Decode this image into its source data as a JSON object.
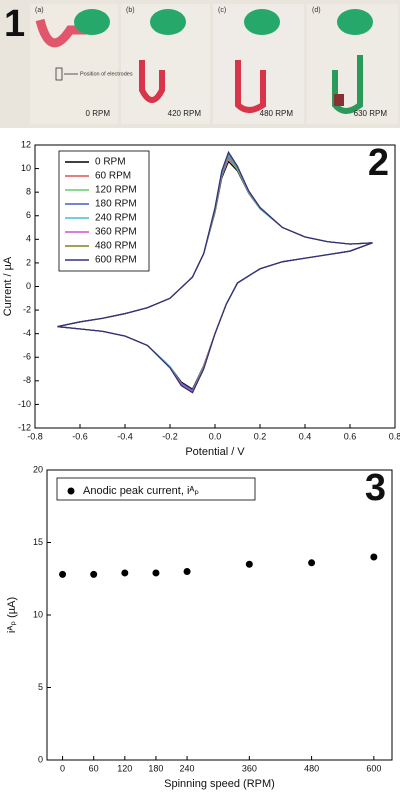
{
  "photo_panel": {
    "label": "1",
    "captions": [
      "(a)",
      "(b)",
      "(c)",
      "(d)"
    ],
    "speeds": [
      "0 RPM",
      "420 RPM",
      "480 RPM",
      "630 RPM"
    ],
    "annotation": "Position of electrodes"
  },
  "chart_data": [
    {
      "type": "line",
      "label": "2",
      "xlabel": "Potential / V",
      "ylabel": "Current / µA",
      "xlim": [
        -0.8,
        0.8
      ],
      "xticks": [
        -0.8,
        -0.6,
        -0.4,
        -0.2,
        {
          "value": 0,
          "label": "0.0"
        },
        0.2,
        0.4,
        0.6,
        0.8
      ],
      "ylim": [
        -12,
        12
      ],
      "yticks": [
        -12,
        -10,
        -8,
        -6,
        -4,
        -2,
        0,
        2,
        4,
        6,
        8,
        10,
        12
      ],
      "legend": "upper-left",
      "x": [
        -0.7,
        -0.6,
        -0.5,
        -0.4,
        -0.3,
        -0.2,
        -0.1,
        -0.05,
        0,
        0.03,
        0.06,
        0.1,
        0.15,
        0.2,
        0.3,
        0.4,
        0.5,
        0.6,
        0.7,
        0.6,
        0.5,
        0.4,
        0.3,
        0.2,
        0.1,
        0.05,
        0,
        -0.05,
        -0.1,
        -0.15,
        -0.2,
        -0.3,
        -0.4,
        -0.5,
        -0.6,
        -0.7
      ],
      "series": [
        {
          "name": "0 RPM",
          "color": "#000000",
          "values": [
            -3.4,
            -3.0,
            -2.7,
            -2.3,
            -1.8,
            -1.0,
            0.8,
            2.8,
            6.3,
            9.2,
            10.6,
            9.8,
            7.9,
            6.6,
            5.0,
            4.2,
            3.8,
            3.6,
            3.7,
            3.0,
            2.7,
            2.4,
            2.1,
            1.5,
            0.3,
            -1.5,
            -4.0,
            -6.7,
            -8.7,
            -8.1,
            -6.8,
            -5.0,
            -4.2,
            -3.8,
            -3.6,
            -3.4
          ]
        },
        {
          "name": "60 RPM",
          "color": "#e05050",
          "values": [
            -3.4,
            -3.0,
            -2.7,
            -2.3,
            -1.8,
            -1.0,
            0.8,
            2.8,
            6.4,
            9.3,
            10.8,
            9.9,
            7.9,
            6.6,
            5.0,
            4.2,
            3.8,
            3.6,
            3.7,
            3.0,
            2.7,
            2.4,
            2.1,
            1.5,
            0.3,
            -1.5,
            -4.0,
            -6.7,
            -8.8,
            -8.2,
            -6.8,
            -5.0,
            -4.2,
            -3.8,
            -3.6,
            -3.4
          ]
        },
        {
          "name": "120 RPM",
          "color": "#66cc66",
          "values": [
            -3.4,
            -3.0,
            -2.7,
            -2.3,
            -1.8,
            -1.0,
            0.8,
            2.8,
            6.4,
            9.4,
            10.9,
            9.9,
            8.0,
            6.6,
            5.0,
            4.2,
            3.8,
            3.6,
            3.7,
            3.0,
            2.7,
            2.4,
            2.1,
            1.5,
            0.3,
            -1.5,
            -4.0,
            -6.8,
            -8.8,
            -8.2,
            -6.8,
            -5.0,
            -4.2,
            -3.8,
            -3.6,
            -3.4
          ]
        },
        {
          "name": "180 RPM",
          "color": "#4060c0",
          "values": [
            -3.4,
            -3.0,
            -2.7,
            -2.3,
            -1.8,
            -1.0,
            0.8,
            2.8,
            6.5,
            9.4,
            11.0,
            10.0,
            8.0,
            6.6,
            5.0,
            4.2,
            3.8,
            3.6,
            3.7,
            3.0,
            2.7,
            2.4,
            2.1,
            1.5,
            0.3,
            -1.5,
            -4.0,
            -6.8,
            -8.8,
            -8.2,
            -6.8,
            -5.0,
            -4.2,
            -3.8,
            -3.6,
            -3.4
          ]
        },
        {
          "name": "240 RPM",
          "color": "#40c0d0",
          "values": [
            -3.4,
            -3.0,
            -2.7,
            -2.3,
            -1.8,
            -1.0,
            0.8,
            2.8,
            6.5,
            9.5,
            11.1,
            10.0,
            8.0,
            6.6,
            5.0,
            4.2,
            3.8,
            3.6,
            3.7,
            3.0,
            2.7,
            2.4,
            2.1,
            1.5,
            0.3,
            -1.5,
            -4.0,
            -6.8,
            -8.9,
            -8.3,
            -6.8,
            -5.0,
            -4.2,
            -3.8,
            -3.6,
            -3.4
          ]
        },
        {
          "name": "360 RPM",
          "color": "#d050d0",
          "values": [
            -3.4,
            -3.0,
            -2.7,
            -2.3,
            -1.8,
            -1.0,
            0.8,
            2.8,
            6.6,
            9.6,
            11.2,
            10.1,
            8.1,
            6.7,
            5.0,
            4.2,
            3.8,
            3.6,
            3.7,
            3.0,
            2.7,
            2.4,
            2.1,
            1.5,
            0.3,
            -1.5,
            -4.0,
            -6.9,
            -8.9,
            -8.3,
            -6.9,
            -5.0,
            -4.2,
            -3.8,
            -3.6,
            -3.4
          ]
        },
        {
          "name": "480 RPM",
          "color": "#808020",
          "values": [
            -3.4,
            -3.0,
            -2.7,
            -2.3,
            -1.8,
            -1.0,
            0.8,
            2.8,
            6.6,
            9.7,
            11.3,
            10.1,
            8.1,
            6.7,
            5.0,
            4.2,
            3.8,
            3.6,
            3.7,
            3.0,
            2.7,
            2.4,
            2.1,
            1.5,
            0.3,
            -1.5,
            -4.0,
            -6.9,
            -9.0,
            -8.4,
            -6.9,
            -5.0,
            -4.2,
            -3.8,
            -3.6,
            -3.4
          ]
        },
        {
          "name": "600 RPM",
          "color": "#303080",
          "values": [
            -3.4,
            -3.0,
            -2.7,
            -2.3,
            -1.8,
            -1.0,
            0.8,
            2.8,
            6.7,
            9.8,
            11.4,
            10.2,
            8.1,
            6.7,
            5.0,
            4.2,
            3.8,
            3.6,
            3.7,
            3.0,
            2.7,
            2.4,
            2.1,
            1.5,
            0.3,
            -1.5,
            -4.0,
            -7.0,
            -9.0,
            -8.4,
            -6.9,
            -5.0,
            -4.2,
            -3.8,
            -3.6,
            -3.4
          ]
        }
      ]
    },
    {
      "type": "scatter",
      "label": "3",
      "xlabel": "Spinning speed (RPM)",
      "ylabel": "iᴬₚ (µA)",
      "xlim": [
        -30,
        635
      ],
      "xticks": [
        0,
        60,
        120,
        180,
        240,
        360,
        480,
        600
      ],
      "ylim": [
        0,
        20
      ],
      "yticks": [
        0,
        5,
        10,
        15,
        20
      ],
      "legend": "upper-left",
      "series": [
        {
          "name": "Anodic peak current, iᴬₚ",
          "color": "#000000",
          "x": [
            0,
            60,
            120,
            180,
            240,
            360,
            480,
            600
          ],
          "values": [
            12.8,
            12.8,
            12.9,
            12.9,
            13.0,
            13.5,
            13.6,
            14.0
          ]
        }
      ]
    }
  ]
}
